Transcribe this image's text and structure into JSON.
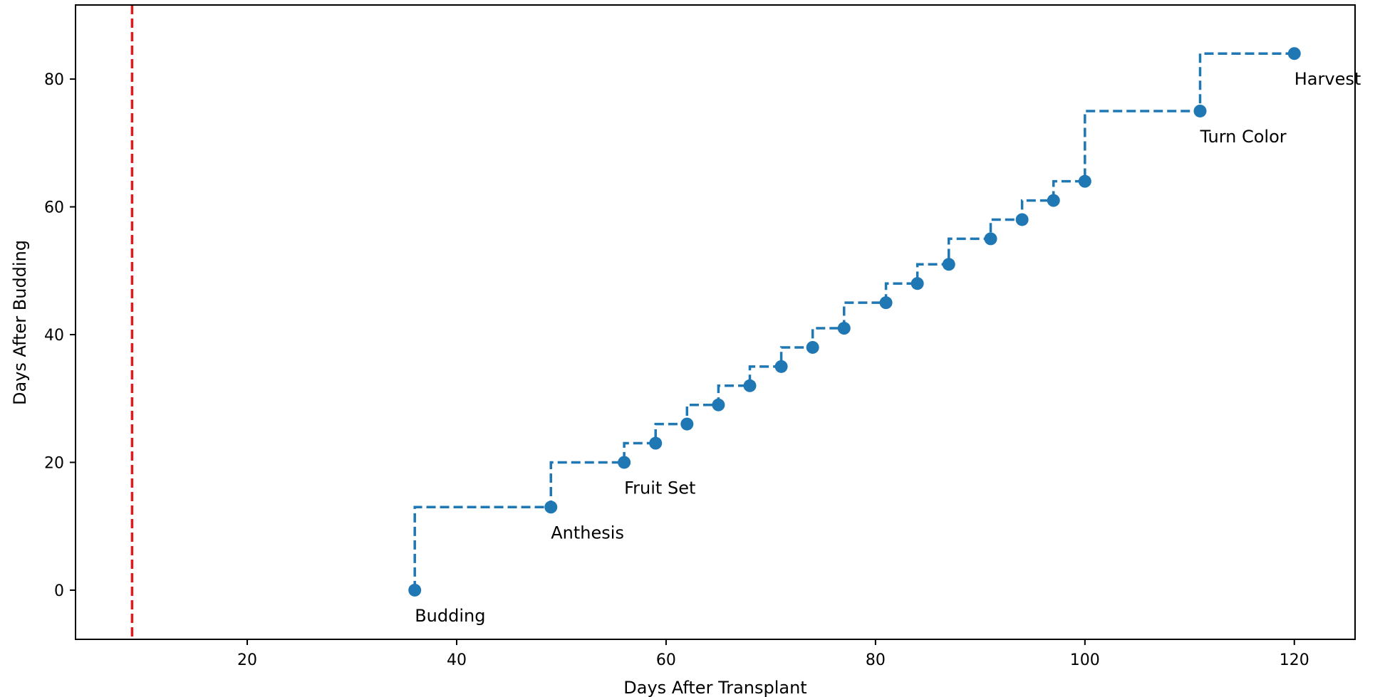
{
  "chart_data": {
    "type": "line",
    "step": "pre",
    "xlabel": "Days After Transplant",
    "ylabel": "Days After Budding",
    "xlim": [
      3.6,
      125.8
    ],
    "ylim": [
      -7.7,
      91.6
    ],
    "xticks": [
      20,
      40,
      60,
      80,
      100,
      120
    ],
    "yticks": [
      0,
      20,
      40,
      60,
      80
    ],
    "grid": false,
    "vline": {
      "x": 9,
      "color": "#e31a1c",
      "style": "dashed"
    },
    "series": [
      {
        "color": "#1f77b4",
        "x": [
          36,
          49,
          56,
          59,
          62,
          65,
          68,
          71,
          74,
          77,
          81,
          84,
          87,
          91,
          94,
          97,
          100,
          111,
          120
        ],
        "y": [
          0,
          13,
          20,
          23,
          26,
          29,
          32,
          35,
          38,
          41,
          45,
          48,
          51,
          55,
          58,
          61,
          64,
          75,
          84
        ]
      }
    ],
    "annotations": [
      {
        "x": 36,
        "y": 0,
        "text": "Budding"
      },
      {
        "x": 49,
        "y": 13,
        "text": "Anthesis"
      },
      {
        "x": 56,
        "y": 20,
        "text": "Fruit Set"
      },
      {
        "x": 111,
        "y": 75,
        "text": "Turn Color"
      },
      {
        "x": 120,
        "y": 84,
        "text": "Harvest"
      }
    ]
  }
}
